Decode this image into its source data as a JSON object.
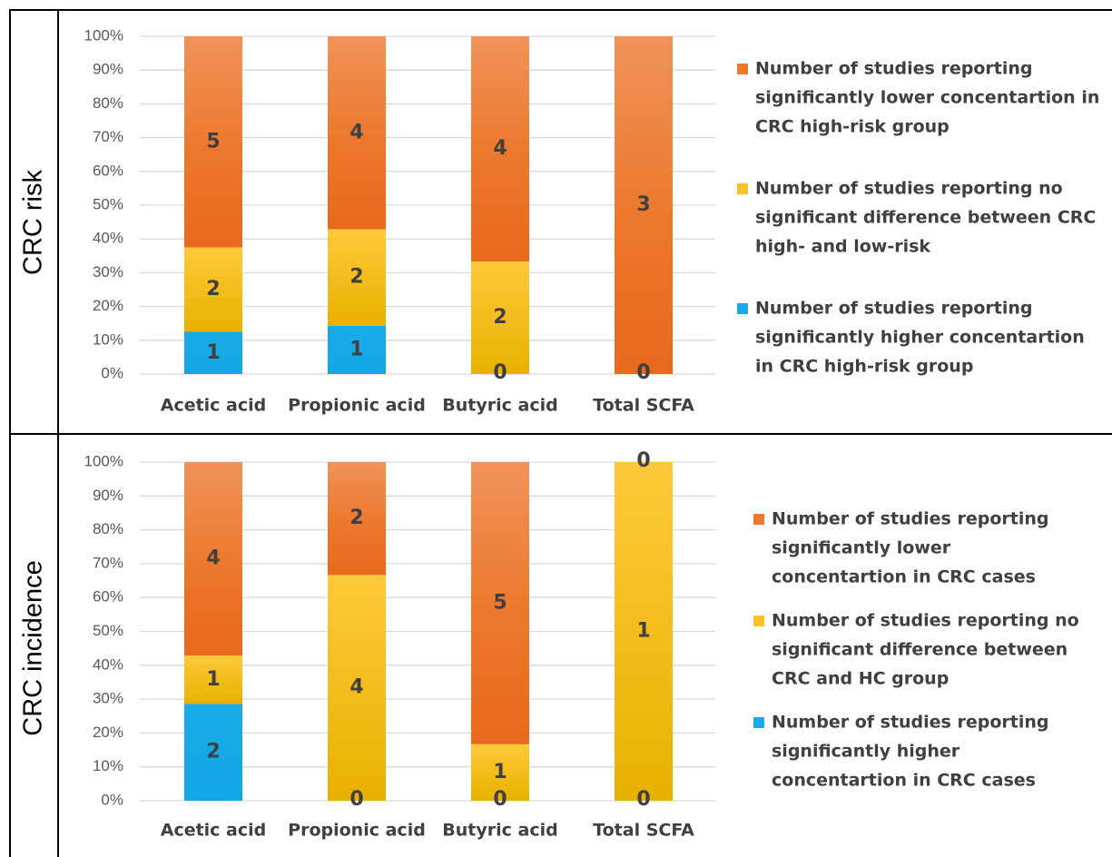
{
  "colors": {
    "higher": "#18ABE7",
    "nodiff": "#F6C226",
    "lower": "#EB7A2C",
    "grid": "#D9D9D9",
    "frame": "#000000"
  },
  "chart_data": [
    {
      "type": "bar",
      "stacked": "percent",
      "row_title": "CRC risk",
      "categories": [
        "Acetic acid",
        "Propionic acid",
        "Butyric acid",
        "Total SCFA"
      ],
      "ylim": [
        0,
        100
      ],
      "yticks": [
        "0%",
        "10%",
        "20%",
        "30%",
        "40%",
        "50%",
        "60%",
        "70%",
        "80%",
        "90%",
        "100%"
      ],
      "grid": true,
      "legend_position": "right",
      "series": [
        {
          "key": "higher",
          "name": "Number of studies reporting significantly higher concentartion in CRC high-risk group",
          "legend_lines": [
            "Number of studies reporting",
            "significantly higher concentartion",
            "in CRC high-risk group"
          ],
          "values": [
            1,
            1,
            0,
            0
          ]
        },
        {
          "key": "nodiff",
          "name": "Number of studies reporting no significant difference between CRC high- and low-risk",
          "legend_lines": [
            "Number of studies reporting no",
            "significant difference between CRC",
            "high- and low-risk"
          ],
          "values": [
            2,
            2,
            2,
            0
          ]
        },
        {
          "key": "lower",
          "name": "Number of studies reporting significantly lower concentartion in CRC high-risk group",
          "legend_lines": [
            "Number of studies reporting",
            "significantly lower concentartion in",
            "CRC high-risk group"
          ],
          "values": [
            5,
            4,
            4,
            3
          ]
        }
      ]
    },
    {
      "type": "bar",
      "stacked": "percent",
      "row_title": "CRC incidence",
      "categories": [
        "Acetic acid",
        "Propionic acid",
        "Butyric acid",
        "Total SCFA"
      ],
      "ylim": [
        0,
        100
      ],
      "yticks": [
        "0%",
        "10%",
        "20%",
        "30%",
        "40%",
        "50%",
        "60%",
        "70%",
        "80%",
        "90%",
        "100%"
      ],
      "grid": true,
      "legend_position": "right",
      "series": [
        {
          "key": "higher",
          "name": "Number of studies reporting significantly higher concentartion in CRC cases",
          "legend_lines": [
            "Number of studies reporting",
            "significantly higher",
            "concentartion in CRC cases"
          ],
          "values": [
            2,
            0,
            0,
            0
          ]
        },
        {
          "key": "nodiff",
          "name": "Number of studies reporting no significant difference between CRC and HC group",
          "legend_lines": [
            "Number of studies reporting no",
            "significant difference between",
            "CRC and HC group"
          ],
          "values": [
            1,
            4,
            1,
            1
          ]
        },
        {
          "key": "lower",
          "name": "Number of studies reporting significantly lower concentartion in CRC cases",
          "legend_lines": [
            "Number of studies reporting",
            "significantly lower",
            "concentartion in CRC cases"
          ],
          "values": [
            4,
            2,
            5,
            0
          ]
        }
      ]
    }
  ]
}
